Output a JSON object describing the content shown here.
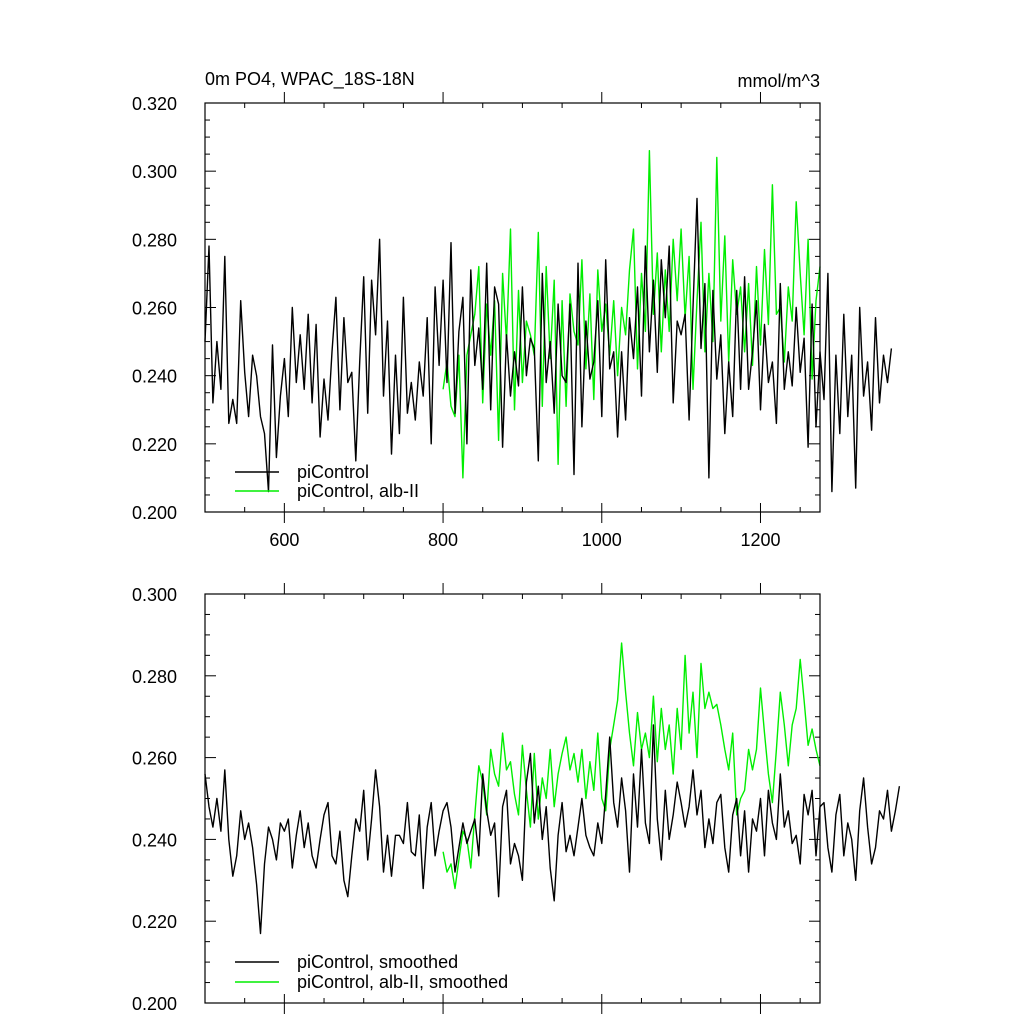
{
  "chart_data": [
    {
      "type": "line",
      "title": "0m PO4, WPAC_18S-18N",
      "units": "mmol/m^3",
      "xlim": [
        500,
        1275
      ],
      "ylim": [
        0.2,
        0.32
      ],
      "xticks": [
        600,
        800,
        1000,
        1200
      ],
      "xtick_labels": [
        "600",
        "800",
        "1000",
        "1200"
      ],
      "yticks": [
        0.2,
        0.22,
        0.24,
        0.26,
        0.28,
        0.3,
        0.32
      ],
      "ytick_labels": [
        "0.200",
        "0.220",
        "0.240",
        "0.260",
        "0.280",
        "0.300",
        "0.320"
      ],
      "legend_position": "bottom-left",
      "grid": false,
      "series": [
        {
          "name": "piControl",
          "color": "#000000",
          "x_start": 500,
          "x_end": 1200,
          "x_step": 5,
          "values": [
            0.25,
            0.278,
            0.232,
            0.25,
            0.236,
            0.275,
            0.226,
            0.233,
            0.226,
            0.262,
            0.241,
            0.228,
            0.246,
            0.24,
            0.228,
            0.223,
            0.206,
            0.249,
            0.216,
            0.234,
            0.245,
            0.228,
            0.26,
            0.238,
            0.252,
            0.236,
            0.258,
            0.232,
            0.255,
            0.222,
            0.239,
            0.227,
            0.247,
            0.263,
            0.23,
            0.257,
            0.238,
            0.241,
            0.215,
            0.244,
            0.269,
            0.229,
            0.268,
            0.252,
            0.28,
            0.234,
            0.256,
            0.217,
            0.246,
            0.223,
            0.263,
            0.229,
            0.238,
            0.227,
            0.244,
            0.234,
            0.257,
            0.22,
            0.266,
            0.243,
            0.268,
            0.238,
            0.279,
            0.229,
            0.253,
            0.263,
            0.22,
            0.271,
            0.243,
            0.254,
            0.236,
            0.273,
            0.23,
            0.266,
            0.261,
            0.219,
            0.252,
            0.234,
            0.247,
            0.237,
            0.266,
            0.24,
            0.251,
            0.248,
            0.215,
            0.27,
            0.238,
            0.25,
            0.229,
            0.261,
            0.24,
            0.238,
            0.261,
            0.211,
            0.273,
            0.225,
            0.256,
            0.239,
            0.244,
            0.262,
            0.228,
            0.274,
            0.242,
            0.247,
            0.222,
            0.247,
            0.227,
            0.257,
            0.245,
            0.266,
            0.234,
            0.278,
            0.247,
            0.268,
            0.241,
            0.274,
            0.257,
            0.278,
            0.232,
            0.256,
            0.252,
            0.258,
            0.227,
            0.26,
            0.292,
            0.248,
            0.267,
            0.21,
            0.265,
            0.239,
            0.252,
            0.223,
            0.244,
            0.228,
            0.265,
            0.236,
            0.269,
            0.236,
            0.247,
            0.262,
            0.23,
            0.255,
            0.238,
            0.244,
            0.226,
            0.267,
            0.236,
            0.247,
            0.237,
            0.26,
            0.241,
            0.251,
            0.219,
            0.261,
            0.225,
            0.247,
            0.233,
            0.27,
            0.206,
            0.246,
            0.223,
            0.258,
            0.228,
            0.246,
            0.207,
            0.26,
            0.234,
            0.244,
            0.224,
            0.257,
            0.232,
            0.246,
            0.238,
            0.248
          ]
        },
        {
          "name": "piControl, alb-II",
          "color": "#00ee00",
          "x_start": 800,
          "x_end": 1275,
          "x_step": 5,
          "values": [
            0.236,
            0.244,
            0.231,
            0.228,
            0.246,
            0.21,
            0.246,
            0.252,
            0.258,
            0.272,
            0.232,
            0.261,
            0.246,
            0.262,
            0.221,
            0.27,
            0.25,
            0.283,
            0.23,
            0.265,
            0.238,
            0.256,
            0.252,
            0.246,
            0.282,
            0.231,
            0.272,
            0.245,
            0.268,
            0.214,
            0.262,
            0.231,
            0.264,
            0.253,
            0.249,
            0.274,
            0.242,
            0.264,
            0.233,
            0.271,
            0.253,
            0.261,
            0.246,
            0.262,
            0.24,
            0.26,
            0.252,
            0.271,
            0.283,
            0.242,
            0.27,
            0.253,
            0.306,
            0.258,
            0.276,
            0.247,
            0.271,
            0.253,
            0.28,
            0.262,
            0.283,
            0.257,
            0.275,
            0.236,
            0.262,
            0.285,
            0.247,
            0.27,
            0.25,
            0.304,
            0.256,
            0.281,
            0.244,
            0.274,
            0.258,
            0.266,
            0.247,
            0.267,
            0.243,
            0.272,
            0.249,
            0.277,
            0.255,
            0.296,
            0.258,
            0.26,
            0.244,
            0.266,
            0.256,
            0.291,
            0.27,
            0.252,
            0.28,
            0.239,
            0.262,
            0.272
          ]
        }
      ]
    },
    {
      "type": "line",
      "title": "",
      "xlim": [
        500,
        1275
      ],
      "ylim": [
        0.2,
        0.3
      ],
      "xticks": [
        600,
        800,
        1000,
        1200
      ],
      "yticks": [
        0.2,
        0.22,
        0.24,
        0.26,
        0.28,
        0.3
      ],
      "ytick_labels": [
        "0.200",
        "0.220",
        "0.240",
        "0.260",
        "0.280",
        "0.300"
      ],
      "legend_position": "bottom-left",
      "grid": false,
      "series": [
        {
          "name": "piControl, smoothed",
          "color": "#000000",
          "x_start": 500,
          "x_end": 1200,
          "x_step": 5,
          "values": [
            0.256,
            0.248,
            0.243,
            0.25,
            0.242,
            0.257,
            0.24,
            0.231,
            0.236,
            0.247,
            0.24,
            0.244,
            0.238,
            0.229,
            0.217,
            0.234,
            0.243,
            0.24,
            0.235,
            0.244,
            0.242,
            0.245,
            0.233,
            0.241,
            0.247,
            0.238,
            0.244,
            0.236,
            0.233,
            0.24,
            0.246,
            0.249,
            0.236,
            0.234,
            0.242,
            0.23,
            0.226,
            0.236,
            0.245,
            0.242,
            0.252,
            0.235,
            0.245,
            0.257,
            0.248,
            0.232,
            0.241,
            0.231,
            0.241,
            0.241,
            0.239,
            0.249,
            0.237,
            0.236,
            0.246,
            0.228,
            0.243,
            0.249,
            0.236,
            0.242,
            0.247,
            0.249,
            0.243,
            0.232,
            0.238,
            0.244,
            0.239,
            0.242,
            0.245,
            0.236,
            0.256,
            0.247,
            0.241,
            0.244,
            0.226,
            0.248,
            0.252,
            0.234,
            0.239,
            0.236,
            0.23,
            0.254,
            0.261,
            0.244,
            0.253,
            0.24,
            0.248,
            0.233,
            0.225,
            0.241,
            0.249,
            0.237,
            0.241,
            0.236,
            0.243,
            0.25,
            0.241,
            0.238,
            0.236,
            0.244,
            0.239,
            0.251,
            0.265,
            0.249,
            0.243,
            0.255,
            0.247,
            0.232,
            0.256,
            0.243,
            0.262,
            0.244,
            0.239,
            0.268,
            0.245,
            0.235,
            0.252,
            0.24,
            0.246,
            0.254,
            0.249,
            0.243,
            0.248,
            0.257,
            0.246,
            0.252,
            0.238,
            0.245,
            0.239,
            0.249,
            0.251,
            0.238,
            0.232,
            0.246,
            0.25,
            0.236,
            0.247,
            0.232,
            0.245,
            0.242,
            0.25,
            0.236,
            0.252,
            0.244,
            0.24,
            0.256,
            0.243,
            0.247,
            0.239,
            0.241,
            0.234,
            0.251,
            0.246,
            0.252,
            0.236,
            0.248,
            0.249,
            0.238,
            0.232,
            0.246,
            0.251,
            0.236,
            0.244,
            0.24,
            0.23,
            0.247,
            0.255,
            0.243,
            0.234,
            0.238,
            0.247,
            0.245,
            0.252,
            0.242,
            0.247,
            0.253
          ]
        },
        {
          "name": "piControl, alb-II, smoothed",
          "color": "#00ee00",
          "x_start": 800,
          "x_end": 1275,
          "x_step": 5,
          "values": [
            0.237,
            0.232,
            0.234,
            0.228,
            0.235,
            0.242,
            0.24,
            0.233,
            0.246,
            0.258,
            0.254,
            0.246,
            0.262,
            0.256,
            0.253,
            0.266,
            0.257,
            0.259,
            0.251,
            0.246,
            0.263,
            0.252,
            0.243,
            0.261,
            0.245,
            0.255,
            0.25,
            0.262,
            0.248,
            0.256,
            0.261,
            0.265,
            0.257,
            0.261,
            0.254,
            0.262,
            0.25,
            0.259,
            0.252,
            0.266,
            0.25,
            0.247,
            0.262,
            0.268,
            0.274,
            0.288,
            0.276,
            0.266,
            0.258,
            0.271,
            0.262,
            0.266,
            0.26,
            0.275,
            0.259,
            0.272,
            0.262,
            0.268,
            0.256,
            0.272,
            0.262,
            0.285,
            0.266,
            0.276,
            0.26,
            0.283,
            0.272,
            0.276,
            0.272,
            0.273,
            0.268,
            0.262,
            0.257,
            0.266,
            0.246,
            0.25,
            0.252,
            0.262,
            0.257,
            0.262,
            0.277,
            0.266,
            0.256,
            0.249,
            0.262,
            0.276,
            0.268,
            0.258,
            0.268,
            0.272,
            0.284,
            0.274,
            0.263,
            0.267,
            0.262,
            0.258
          ]
        }
      ]
    }
  ]
}
